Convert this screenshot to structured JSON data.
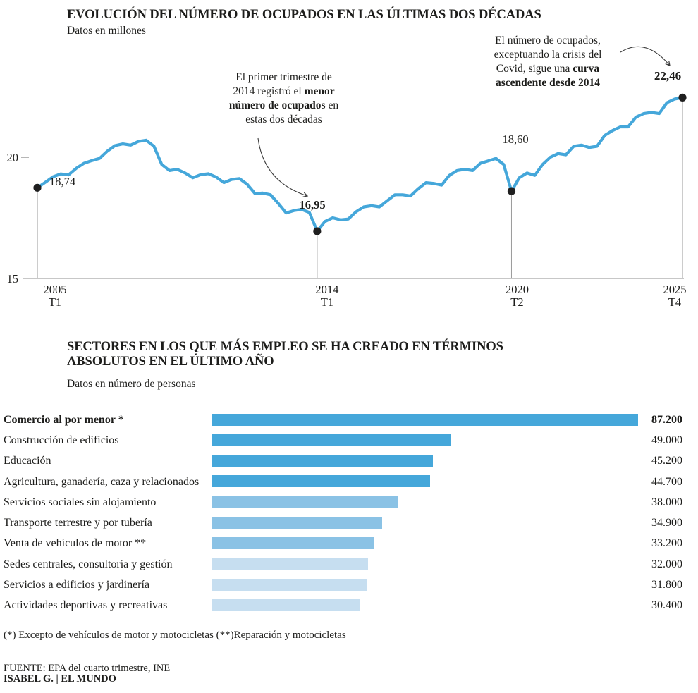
{
  "colors": {
    "line_blue": "#45a7da",
    "bar_dark": "#45a7da",
    "bar_medium": "#8ac2e5",
    "bar_light": "#c6def0",
    "dot_black": "#1f1f1f",
    "text_dark": "#1d1d1b",
    "axis_gray": "#8f8f8f",
    "guide_gray": "#9a9a9a",
    "arrow_gray": "#3c3c3c"
  },
  "chart_data": [
    {
      "type": "line",
      "title": "EVOLUCIÓN DEL NÚMERO DE OCUPADOS EN LAS ÚLTIMAS DOS DÉCADAS",
      "subtitle": "Datos en millones",
      "unit": "millones de ocupados",
      "frequency": "trimestral",
      "x_start": "2005 T1",
      "x_end": "2025 T4",
      "ylim": [
        15,
        22.8
      ],
      "yticks": [
        "20",
        "15"
      ],
      "grid": false,
      "values": [
        18.74,
        18.96,
        19.19,
        19.31,
        19.27,
        19.54,
        19.75,
        19.86,
        19.95,
        20.25,
        20.48,
        20.55,
        20.5,
        20.65,
        20.7,
        20.45,
        19.7,
        19.45,
        19.5,
        19.35,
        19.15,
        19.28,
        19.32,
        19.18,
        18.95,
        19.08,
        19.12,
        18.88,
        18.5,
        18.52,
        18.45,
        18.1,
        17.7,
        17.8,
        17.85,
        17.72,
        16.95,
        17.35,
        17.5,
        17.42,
        17.45,
        17.75,
        17.95,
        18.0,
        17.95,
        18.2,
        18.45,
        18.45,
        18.4,
        18.7,
        18.95,
        18.92,
        18.85,
        19.25,
        19.45,
        19.5,
        19.45,
        19.75,
        19.85,
        19.95,
        19.7,
        18.6,
        19.15,
        19.35,
        19.25,
        19.7,
        20.0,
        20.15,
        20.1,
        20.45,
        20.5,
        20.4,
        20.45,
        20.9,
        21.1,
        21.25,
        21.25,
        21.65,
        21.8,
        21.85,
        21.8,
        22.25,
        22.4,
        22.46
      ],
      "x_tick_labels": [
        {
          "year": "2005",
          "quarter": "T1",
          "index": 0
        },
        {
          "year": "2014",
          "quarter": "T1",
          "index": 36
        },
        {
          "year": "2020",
          "quarter": "T2",
          "index": 61
        },
        {
          "year": "2025",
          "quarter": "T4",
          "index": 83
        }
      ],
      "labeled_points": [
        {
          "index": 0,
          "display": "18,74",
          "value": 18.74,
          "bold": false
        },
        {
          "index": 36,
          "display": "16,95",
          "value": 16.95,
          "bold": true
        },
        {
          "index": 61,
          "display": "18,60",
          "value": 18.6,
          "bold": false
        },
        {
          "index": 83,
          "display": "22,46",
          "value": 22.46,
          "bold": true
        }
      ],
      "annotations": [
        {
          "lines": [
            [
              {
                "t": "El primer trimestre de"
              }
            ],
            [
              {
                "t": "2014 registró el "
              },
              {
                "t": "menor",
                "b": true
              }
            ],
            [
              {
                "t": "número de ocupados",
                "b": true
              },
              {
                "t": " en"
              }
            ],
            [
              {
                "t": "estas dos décadas"
              }
            ]
          ]
        },
        {
          "lines": [
            [
              {
                "t": "El número de ocupados,"
              }
            ],
            [
              {
                "t": "exceptuando la crisis del"
              }
            ],
            [
              {
                "t": "Covid, sigue una "
              },
              {
                "t": "curva",
                "b": true
              }
            ],
            [
              {
                "t": "ascendente desde 2014",
                "b": true
              }
            ]
          ]
        }
      ]
    },
    {
      "type": "bar",
      "orientation": "horizontal",
      "title": "SECTORES EN LOS QUE MÁS EMPLEO SE HA CREADO EN TÉRMINOS ABSOLUTOS EN EL ÚLTIMO AÑO",
      "title_lines": [
        "SECTORES EN LOS QUE MÁS EMPLEO SE HA CREADO EN TÉRMINOS",
        "ABSOLUTOS EN EL ÚLTIMO AÑO"
      ],
      "subtitle": "Datos en número de personas",
      "xlim": [
        0,
        87200
      ],
      "bars": [
        {
          "label": "Comercio al por menor *",
          "value": 87200,
          "display": "87.200",
          "bold": true,
          "shade": "dark"
        },
        {
          "label": "Construcción de edificios",
          "value": 49000,
          "display": "49.000",
          "bold": false,
          "shade": "dark"
        },
        {
          "label": "Educación",
          "value": 45200,
          "display": "45.200",
          "bold": false,
          "shade": "dark"
        },
        {
          "label": "Agricultura, ganadería, caza y relacionados",
          "value": 44700,
          "display": "44.700",
          "bold": false,
          "shade": "dark"
        },
        {
          "label": "Servicios sociales sin alojamiento",
          "value": 38000,
          "display": "38.000",
          "bold": false,
          "shade": "medium"
        },
        {
          "label": "Transporte terrestre y por tubería",
          "value": 34900,
          "display": "34.900",
          "bold": false,
          "shade": "medium"
        },
        {
          "label": "Venta de vehículos de motor **",
          "value": 33200,
          "display": "33.200",
          "bold": false,
          "shade": "medium"
        },
        {
          "label": "Sedes centrales, consultoría y gestión",
          "value": 32000,
          "display": "32.000",
          "bold": false,
          "shade": "light"
        },
        {
          "label": "Servicios a edificios y  jardinería",
          "value": 31800,
          "display": "31.800",
          "bold": false,
          "shade": "light"
        },
        {
          "label": "Actividades deportivas y recreativas",
          "value": 30400,
          "display": "30.400",
          "bold": false,
          "shade": "light"
        }
      ]
    }
  ],
  "footnote": "(*) Excepto de vehículos de motor y motocicletas (**)Reparación y motocicletas",
  "source": "FUENTE: EPA del cuarto trimestre, INE",
  "credit": "ISABEL G. | EL MUNDO"
}
